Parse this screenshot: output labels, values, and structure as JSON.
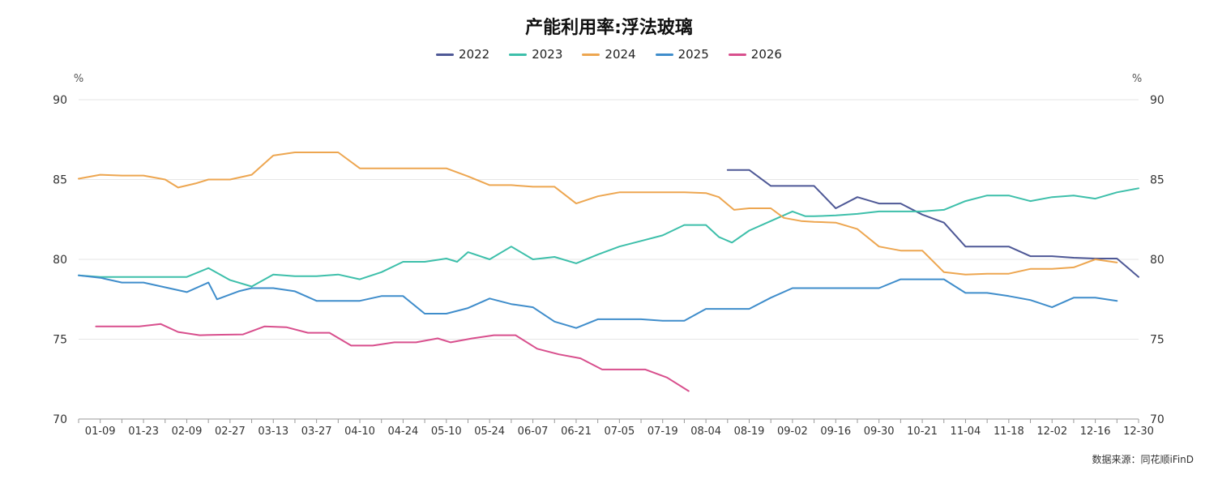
{
  "chart_data": {
    "type": "line",
    "title": "产能利用率:浮法玻璃",
    "y_unit_left": "%",
    "y_unit_right": "%",
    "ylim": [
      70,
      90
    ],
    "yticks": [
      70,
      75,
      80,
      85,
      90
    ],
    "x_tick_labels": [
      "01-09",
      "01-23",
      "02-09",
      "02-27",
      "03-13",
      "03-27",
      "04-10",
      "04-24",
      "05-10",
      "05-24",
      "06-07",
      "06-21",
      "07-05",
      "07-19",
      "08-04",
      "08-19",
      "09-02",
      "09-16",
      "09-30",
      "10-21",
      "11-04",
      "11-18",
      "12-02",
      "12-16",
      "12-30"
    ],
    "grid": true,
    "legend_position": "top-center",
    "series": [
      {
        "name": "2022",
        "color": "#4e5896",
        "points": [
          [
            30,
            85.6
          ],
          [
            31,
            85.6
          ],
          [
            32,
            84.6
          ],
          [
            33,
            84.6
          ],
          [
            34,
            84.6
          ],
          [
            35,
            83.2
          ],
          [
            36,
            83.9
          ],
          [
            37,
            83.5
          ],
          [
            38,
            83.5
          ],
          [
            39,
            82.8
          ],
          [
            40,
            82.3
          ],
          [
            41,
            80.8
          ],
          [
            42,
            80.8
          ],
          [
            43,
            80.8
          ],
          [
            44,
            80.2
          ],
          [
            45,
            80.2
          ],
          [
            46,
            80.1
          ],
          [
            47,
            80.05
          ],
          [
            48,
            80.05
          ],
          [
            49,
            78.9
          ]
        ]
      },
      {
        "name": "2023",
        "color": "#3dbfaa",
        "points": [
          [
            0,
            79.0
          ],
          [
            1,
            78.9
          ],
          [
            2,
            78.9
          ],
          [
            3,
            78.9
          ],
          [
            4,
            78.9
          ],
          [
            5,
            78.9
          ],
          [
            6,
            79.45
          ],
          [
            7,
            78.7
          ],
          [
            8,
            78.3
          ],
          [
            9,
            79.05
          ],
          [
            10,
            78.95
          ],
          [
            11,
            78.95
          ],
          [
            12,
            79.05
          ],
          [
            13,
            78.75
          ],
          [
            14,
            79.2
          ],
          [
            15,
            79.85
          ],
          [
            16,
            79.85
          ],
          [
            17,
            80.05
          ],
          [
            17.5,
            79.85
          ],
          [
            18,
            80.45
          ],
          [
            19,
            80.0
          ],
          [
            20,
            80.8
          ],
          [
            21,
            80.0
          ],
          [
            22,
            80.15
          ],
          [
            23,
            79.75
          ],
          [
            24,
            80.3
          ],
          [
            25,
            80.8
          ],
          [
            26,
            81.15
          ],
          [
            27,
            81.5
          ],
          [
            28,
            82.15
          ],
          [
            29,
            82.15
          ],
          [
            29.6,
            81.4
          ],
          [
            30.2,
            81.05
          ],
          [
            31,
            81.8
          ],
          [
            32,
            82.4
          ],
          [
            33,
            83.0
          ],
          [
            33.6,
            82.7
          ],
          [
            34,
            82.7
          ],
          [
            35,
            82.75
          ],
          [
            36,
            82.85
          ],
          [
            37,
            83.0
          ],
          [
            38,
            83.0
          ],
          [
            39,
            83.0
          ],
          [
            40,
            83.1
          ],
          [
            41,
            83.65
          ],
          [
            42,
            84.0
          ],
          [
            43,
            84.0
          ],
          [
            44,
            83.65
          ],
          [
            45,
            83.9
          ],
          [
            46,
            84.0
          ],
          [
            47,
            83.8
          ],
          [
            48,
            84.2
          ],
          [
            49,
            84.45
          ]
        ]
      },
      {
        "name": "2024",
        "color": "#eda650",
        "points": [
          [
            0,
            85.05
          ],
          [
            1,
            85.3
          ],
          [
            2,
            85.25
          ],
          [
            3,
            85.25
          ],
          [
            4,
            85.0
          ],
          [
            4.6,
            84.5
          ],
          [
            5.4,
            84.75
          ],
          [
            6,
            85.0
          ],
          [
            7,
            85.0
          ],
          [
            8,
            85.3
          ],
          [
            9,
            86.5
          ],
          [
            10,
            86.7
          ],
          [
            11,
            86.7
          ],
          [
            12,
            86.7
          ],
          [
            13,
            85.7
          ],
          [
            14,
            85.7
          ],
          [
            15,
            85.7
          ],
          [
            16,
            85.7
          ],
          [
            17,
            85.7
          ],
          [
            18,
            85.2
          ],
          [
            19,
            84.65
          ],
          [
            20,
            84.65
          ],
          [
            21,
            84.55
          ],
          [
            22,
            84.55
          ],
          [
            23,
            83.5
          ],
          [
            24,
            83.95
          ],
          [
            25,
            84.2
          ],
          [
            26,
            84.2
          ],
          [
            27,
            84.2
          ],
          [
            28,
            84.2
          ],
          [
            29,
            84.15
          ],
          [
            29.6,
            83.9
          ],
          [
            30.3,
            83.1
          ],
          [
            31,
            83.2
          ],
          [
            32,
            83.2
          ],
          [
            32.6,
            82.6
          ],
          [
            33.4,
            82.4
          ],
          [
            34,
            82.35
          ],
          [
            35,
            82.3
          ],
          [
            36,
            81.9
          ],
          [
            37,
            80.8
          ],
          [
            38,
            80.55
          ],
          [
            39,
            80.55
          ],
          [
            40,
            79.2
          ],
          [
            41,
            79.05
          ],
          [
            42,
            79.1
          ],
          [
            43,
            79.1
          ],
          [
            44,
            79.4
          ],
          [
            45,
            79.4
          ],
          [
            46,
            79.5
          ],
          [
            47,
            80.0
          ],
          [
            48,
            79.8
          ]
        ]
      },
      {
        "name": "2025",
        "color": "#3f8dcb",
        "points": [
          [
            0,
            79.0
          ],
          [
            1,
            78.85
          ],
          [
            2,
            78.55
          ],
          [
            3,
            78.55
          ],
          [
            4,
            78.25
          ],
          [
            5,
            77.95
          ],
          [
            6,
            78.55
          ],
          [
            6.4,
            77.5
          ],
          [
            7.4,
            78.0
          ],
          [
            8,
            78.2
          ],
          [
            9,
            78.2
          ],
          [
            10,
            78.0
          ],
          [
            11,
            77.4
          ],
          [
            12,
            77.4
          ],
          [
            13,
            77.4
          ],
          [
            14,
            77.7
          ],
          [
            15,
            77.7
          ],
          [
            16,
            76.6
          ],
          [
            17,
            76.6
          ],
          [
            18,
            76.95
          ],
          [
            19,
            77.55
          ],
          [
            20,
            77.2
          ],
          [
            21,
            77.0
          ],
          [
            22,
            76.1
          ],
          [
            23,
            75.7
          ],
          [
            24,
            76.25
          ],
          [
            25,
            76.25
          ],
          [
            26,
            76.25
          ],
          [
            27,
            76.15
          ],
          [
            28,
            76.15
          ],
          [
            29,
            76.9
          ],
          [
            30,
            76.9
          ],
          [
            31,
            76.9
          ],
          [
            32,
            77.6
          ],
          [
            33,
            78.2
          ],
          [
            34,
            78.2
          ],
          [
            35,
            78.2
          ],
          [
            36,
            78.2
          ],
          [
            37,
            78.2
          ],
          [
            38,
            78.75
          ],
          [
            39,
            78.75
          ],
          [
            40,
            78.75
          ],
          [
            41,
            77.9
          ],
          [
            42,
            77.9
          ],
          [
            43,
            77.7
          ],
          [
            44,
            77.45
          ],
          [
            45,
            77.0
          ],
          [
            46,
            77.6
          ],
          [
            47,
            77.6
          ],
          [
            48,
            77.4
          ]
        ]
      },
      {
        "name": "2026",
        "color": "#d84f8d",
        "points": [
          [
            0.8,
            75.8
          ],
          [
            1.8,
            75.8
          ],
          [
            2.8,
            75.8
          ],
          [
            3.8,
            75.95
          ],
          [
            4.6,
            75.45
          ],
          [
            5.6,
            75.25
          ],
          [
            6.6,
            75.28
          ],
          [
            7.6,
            75.3
          ],
          [
            8.6,
            75.8
          ],
          [
            9.6,
            75.75
          ],
          [
            10.6,
            75.4
          ],
          [
            11.6,
            75.4
          ],
          [
            12.6,
            74.6
          ],
          [
            13.6,
            74.6
          ],
          [
            14.6,
            74.8
          ],
          [
            15.6,
            74.8
          ],
          [
            16.6,
            75.05
          ],
          [
            17.2,
            74.8
          ],
          [
            18.2,
            75.05
          ],
          [
            19.2,
            75.25
          ],
          [
            20.2,
            75.25
          ],
          [
            21.2,
            74.4
          ],
          [
            22.2,
            74.05
          ],
          [
            23.2,
            73.8
          ],
          [
            24.2,
            73.1
          ],
          [
            25.2,
            73.1
          ],
          [
            26.2,
            73.1
          ],
          [
            27.2,
            72.6
          ],
          [
            28.2,
            71.75
          ]
        ]
      }
    ]
  },
  "source_note": "数据来源：同花顺iFinD"
}
